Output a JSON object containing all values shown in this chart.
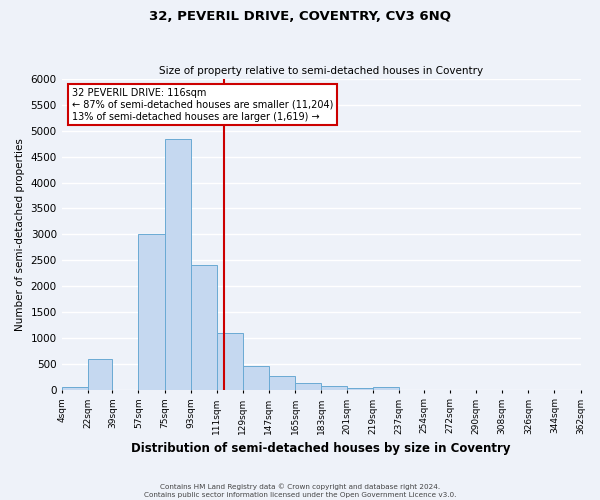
{
  "title": "32, PEVERIL DRIVE, COVENTRY, CV3 6NQ",
  "subtitle": "Size of property relative to semi-detached houses in Coventry",
  "xlabel": "Distribution of semi-detached houses by size in Coventry",
  "ylabel": "Number of semi-detached properties",
  "bin_edges": [
    4,
    22,
    39,
    57,
    75,
    93,
    111,
    129,
    147,
    165,
    183,
    201,
    219,
    237,
    254,
    272,
    290,
    308,
    326,
    344,
    362
  ],
  "bin_counts": [
    50,
    600,
    0,
    3000,
    4850,
    2400,
    1100,
    450,
    260,
    130,
    70,
    30,
    50,
    0,
    0,
    0,
    0,
    0,
    0,
    0
  ],
  "property_size": 116,
  "bar_color": "#c5d8f0",
  "bar_edge_color": "#6aaad4",
  "vline_color": "#cc0000",
  "annotation_box_color": "#cc0000",
  "annotation_title": "32 PEVERIL DRIVE: 116sqm",
  "annotation_line1": "← 87% of semi-detached houses are smaller (11,204)",
  "annotation_line2": "13% of semi-detached houses are larger (1,619) →",
  "ylim": [
    0,
    6000
  ],
  "yticks": [
    0,
    500,
    1000,
    1500,
    2000,
    2500,
    3000,
    3500,
    4000,
    4500,
    5000,
    5500,
    6000
  ],
  "tick_labels": [
    "4sqm",
    "22sqm",
    "39sqm",
    "57sqm",
    "75sqm",
    "93sqm",
    "111sqm",
    "129sqm",
    "147sqm",
    "165sqm",
    "183sqm",
    "201sqm",
    "219sqm",
    "237sqm",
    "254sqm",
    "272sqm",
    "290sqm",
    "308sqm",
    "326sqm",
    "344sqm",
    "362sqm"
  ],
  "footer1": "Contains HM Land Registry data © Crown copyright and database right 2024.",
  "footer2": "Contains public sector information licensed under the Open Government Licence v3.0.",
  "bg_color": "#eef2f9",
  "grid_color": "#ffffff"
}
